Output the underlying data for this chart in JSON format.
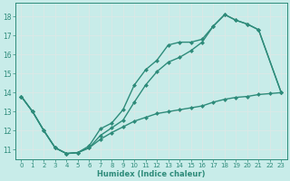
{
  "xlabel": "Humidex (Indice chaleur)",
  "bg_color": "#c8ece9",
  "grid_color": "#e0f0ee",
  "line_color": "#2e8b7a",
  "xlim": [
    -0.5,
    23.5
  ],
  "ylim": [
    10.5,
    18.7
  ],
  "xticks": [
    0,
    1,
    2,
    3,
    4,
    5,
    6,
    7,
    8,
    9,
    10,
    11,
    12,
    13,
    14,
    15,
    16,
    17,
    18,
    19,
    20,
    21,
    22,
    23
  ],
  "yticks": [
    11,
    12,
    13,
    14,
    15,
    16,
    17,
    18
  ],
  "marker_size": 2.5,
  "line_width": 1.0,
  "line1_x": [
    0,
    1,
    2,
    3,
    4,
    5,
    6,
    7,
    8,
    9,
    10,
    11,
    12,
    13,
    14,
    15,
    16,
    17,
    18,
    19,
    20,
    21,
    23
  ],
  "line1_y": [
    13.8,
    13.0,
    12.0,
    11.1,
    10.8,
    10.85,
    11.1,
    11.75,
    12.15,
    12.55,
    13.5,
    14.4,
    15.1,
    15.6,
    15.85,
    16.2,
    16.65,
    17.5,
    18.1,
    17.8,
    17.6,
    17.3,
    14.0
  ],
  "line2_x": [
    0,
    1,
    2,
    3,
    4,
    5,
    6,
    7,
    8,
    9,
    10,
    11,
    12,
    13,
    14,
    15,
    16,
    17,
    18,
    19,
    20,
    21,
    23
  ],
  "line2_y": [
    13.8,
    13.0,
    12.0,
    11.1,
    10.8,
    10.85,
    11.2,
    12.1,
    12.4,
    13.1,
    14.4,
    15.2,
    15.7,
    16.5,
    16.65,
    16.65,
    16.8,
    17.5,
    18.1,
    17.8,
    17.6,
    17.3,
    14.0
  ],
  "line3_x": [
    0,
    1,
    2,
    3,
    4,
    5,
    6,
    7,
    8,
    9,
    10,
    11,
    12,
    13,
    14,
    15,
    16,
    17,
    18,
    19,
    20,
    21,
    22,
    23
  ],
  "line3_y": [
    13.8,
    13.0,
    12.0,
    11.1,
    10.8,
    10.85,
    11.1,
    11.55,
    11.9,
    12.2,
    12.5,
    12.7,
    12.9,
    13.0,
    13.1,
    13.2,
    13.3,
    13.5,
    13.65,
    13.75,
    13.8,
    13.9,
    13.95,
    14.0
  ]
}
